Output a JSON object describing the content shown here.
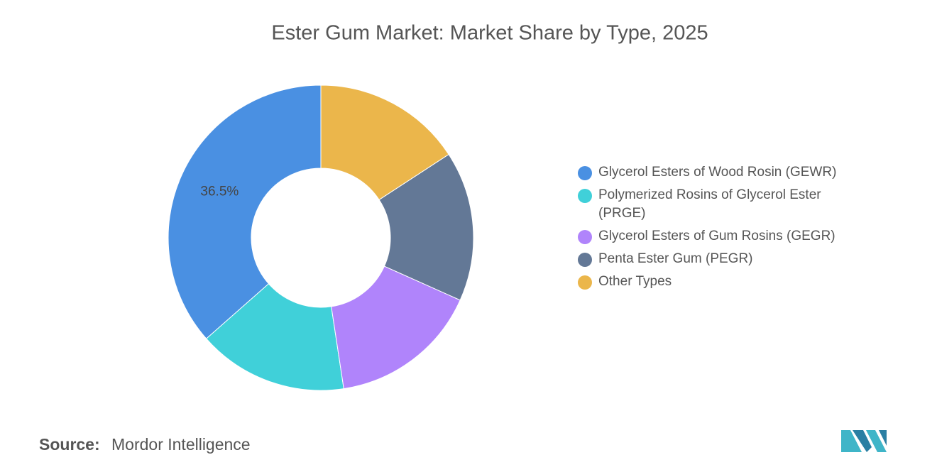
{
  "chart_data": {
    "type": "donut",
    "title": "Ester Gum Market: Market Share by Type, 2025",
    "categories": [
      "Glycerol Esters of Wood Rosin (GEWR)",
      "Polymerized Rosins of Glycerol Ester (PRGE)",
      "Glycerol Esters of Gum Rosins (GEGR)",
      "Penta Ester Gum (PEGR)",
      "Other Types"
    ],
    "values": [
      36.5,
      15.9,
      15.9,
      15.9,
      15.8
    ],
    "value_labels": [
      "36.5%",
      null,
      null,
      null,
      null
    ],
    "colors": [
      "#4a90e2",
      "#40d0d9",
      "#b084fb",
      "#637896",
      "#ebb64b"
    ],
    "legend": "right",
    "source_label": "Source:",
    "source": "Mordor Intelligence"
  }
}
